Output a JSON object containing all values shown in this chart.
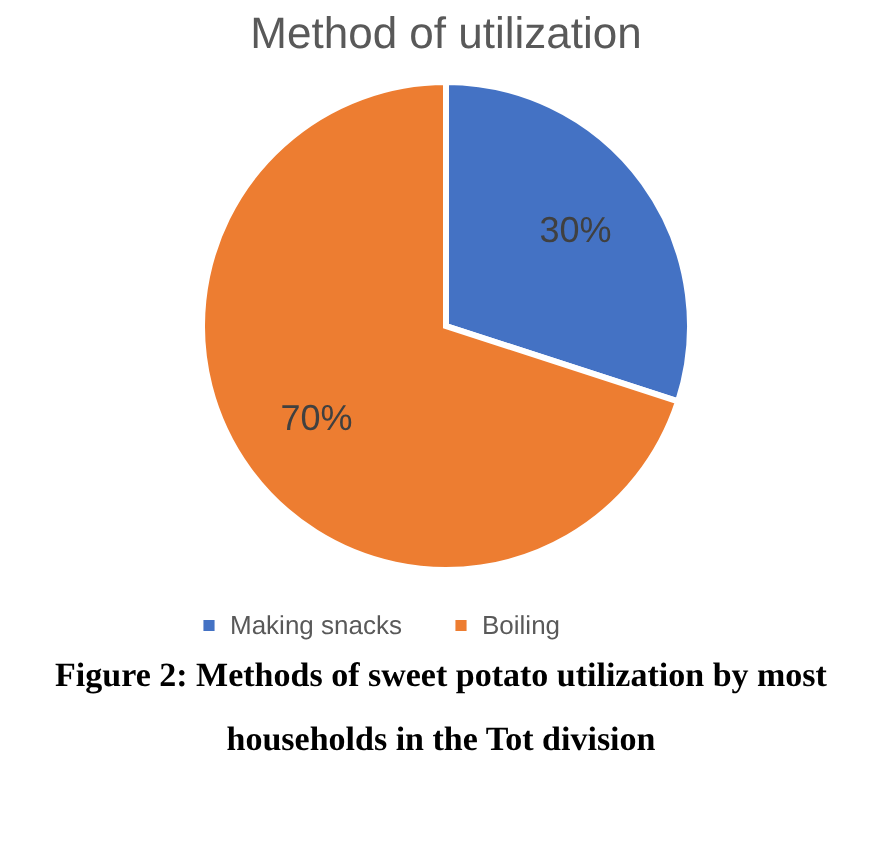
{
  "chart_data": {
    "type": "pie",
    "title": "Method of utilization",
    "categories": [
      "Making snacks",
      "Boiling"
    ],
    "values": [
      30,
      70
    ],
    "colors": [
      "#4472c4",
      "#ed7d31"
    ],
    "value_labels": [
      "30%",
      "70%"
    ],
    "legend": "bottom",
    "annotations": [
      "Figure 2: Methods of sweet potato utilization by most households in the Tot division"
    ]
  }
}
